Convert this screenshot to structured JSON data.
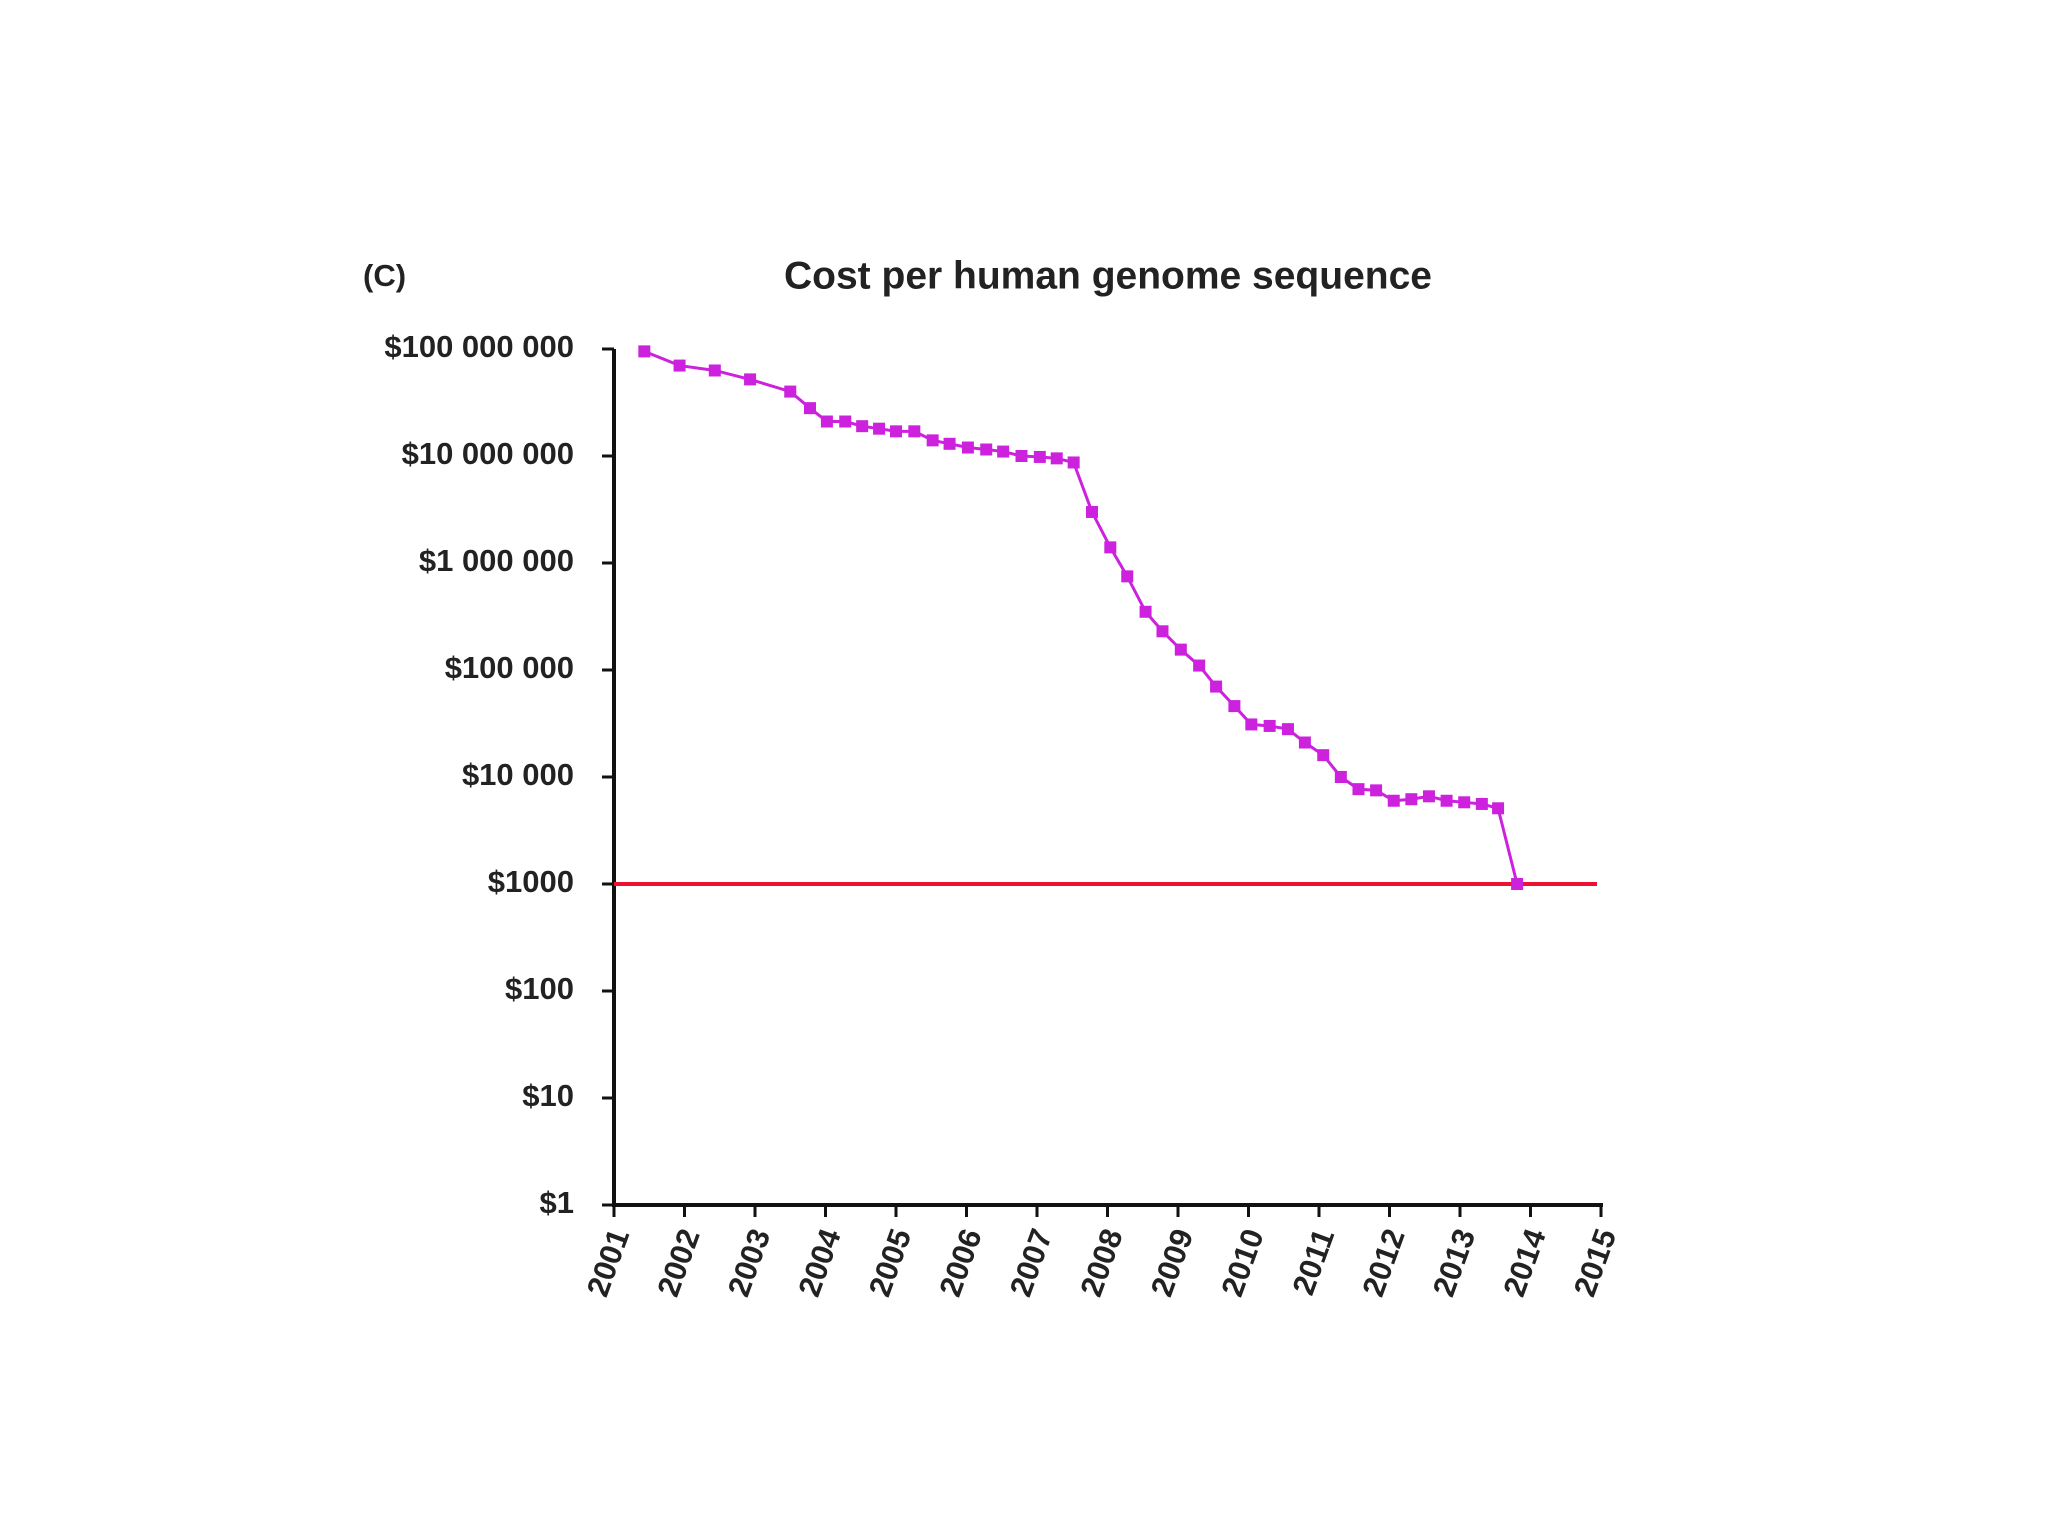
{
  "chart_data": {
    "type": "line",
    "panel_label": "(C)",
    "title": "Cost per human genome sequence",
    "x": [
      2001.43,
      2001.93,
      2002.43,
      2002.93,
      2003.5,
      2003.78,
      2004.02,
      2004.28,
      2004.52,
      2004.76,
      2005.0,
      2005.26,
      2005.52,
      2005.76,
      2006.02,
      2006.28,
      2006.52,
      2006.78,
      2007.04,
      2007.28,
      2007.52,
      2007.78,
      2008.04,
      2008.28,
      2008.54,
      2008.78,
      2009.04,
      2009.3,
      2009.54,
      2009.8,
      2010.04,
      2010.3,
      2010.56,
      2010.8,
      2011.06,
      2011.31,
      2011.56,
      2011.81,
      2012.06,
      2012.31,
      2012.56,
      2012.81,
      2013.06,
      2013.31,
      2013.54,
      2013.81
    ],
    "series": [
      {
        "color": "#cc22dd",
        "values": [
          95000000,
          70000000,
          63000000,
          52000000,
          40000000,
          28000000,
          21000000,
          21000000,
          19000000,
          18000000,
          17000000,
          17000000,
          14000000,
          13000000,
          12000000,
          11500000,
          11000000,
          10000000,
          9800000,
          9500000,
          8700000,
          3000000,
          1400000,
          750000,
          350000,
          230000,
          155000,
          110000,
          70000,
          46000,
          31000,
          30000,
          28000,
          21000,
          16000,
          10000,
          7700,
          7500,
          6000,
          6200,
          6600,
          6000,
          5800,
          5600,
          5100,
          1000
        ]
      }
    ],
    "reference_line": {
      "value": 1000,
      "color": "#ee1133"
    },
    "yscale": "log",
    "xlim": [
      2001,
      2015
    ],
    "xticks": [
      2001,
      2002,
      2003,
      2004,
      2005,
      2006,
      2007,
      2008,
      2009,
      2010,
      2011,
      2012,
      2013,
      2014,
      2015
    ],
    "ylim": [
      1,
      100000000
    ],
    "yticks": [
      {
        "value": 1,
        "label": "$1"
      },
      {
        "value": 10,
        "label": "$10"
      },
      {
        "value": 100,
        "label": "$100"
      },
      {
        "value": 1000,
        "label": "$1000"
      },
      {
        "value": 10000,
        "label": "$10 000"
      },
      {
        "value": 100000,
        "label": "$100 000"
      },
      {
        "value": 1000000,
        "label": "$1 000 000"
      },
      {
        "value": 10000000,
        "label": "$10 000 000"
      },
      {
        "value": 100000000,
        "label": "$100 000 000"
      }
    ]
  }
}
